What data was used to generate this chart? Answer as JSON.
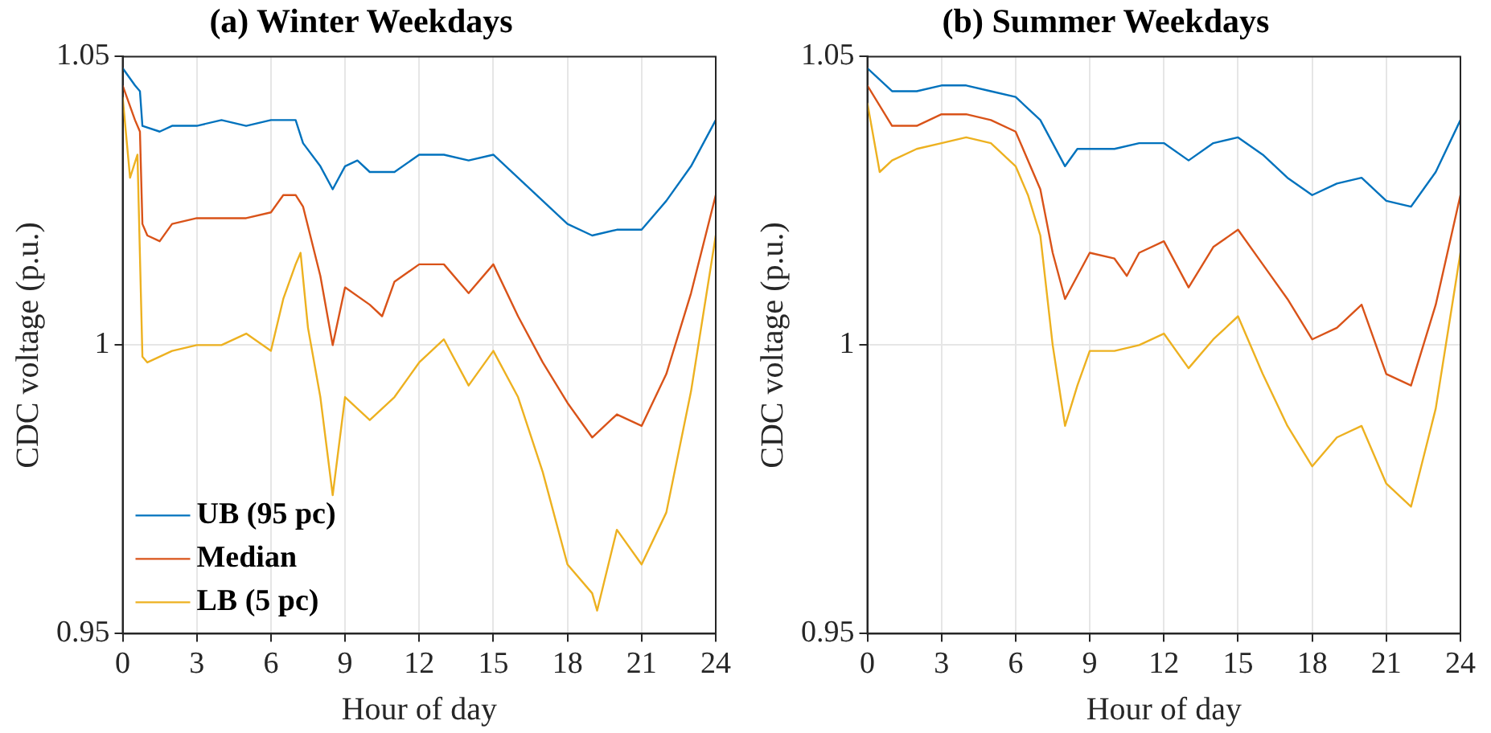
{
  "chart_data": [
    {
      "type": "line",
      "title": "(a) Winter Weekdays",
      "xlabel": "Hour of day",
      "ylabel": "CDC voltage (p.u.)",
      "xlim": [
        0,
        24
      ],
      "xticks": [
        0,
        3,
        6,
        9,
        12,
        15,
        18,
        21,
        24
      ],
      "ylim": [
        0.95,
        1.05
      ],
      "yticks": [
        0.95,
        1,
        1.05
      ],
      "grid": true,
      "legend": "bottom left",
      "marker": "none",
      "line_style": "solid",
      "series": [
        {
          "name": "UB (95 pc)",
          "color": "#0072bd",
          "x": [
            0,
            0.5,
            0.7,
            0.8,
            1.5,
            2,
            3,
            4,
            5,
            6,
            7,
            7.3,
            8,
            8.5,
            9,
            9.5,
            10,
            11,
            12,
            13,
            14,
            15,
            16,
            17,
            18,
            19,
            20,
            21,
            22,
            23,
            24
          ],
          "values": [
            1.048,
            1.045,
            1.044,
            1.038,
            1.037,
            1.038,
            1.038,
            1.039,
            1.038,
            1.039,
            1.039,
            1.035,
            1.031,
            1.027,
            1.031,
            1.032,
            1.03,
            1.03,
            1.033,
            1.033,
            1.032,
            1.033,
            1.029,
            1.025,
            1.021,
            1.019,
            1.02,
            1.02,
            1.025,
            1.031,
            1.039
          ]
        },
        {
          "name": "Median",
          "color": "#d95319",
          "x": [
            0,
            0.5,
            0.7,
            0.8,
            1,
            1.5,
            2,
            3,
            4,
            5,
            6,
            6.5,
            7,
            7.3,
            8,
            8.5,
            9,
            10,
            10.5,
            11,
            12,
            13,
            14,
            15,
            16,
            17,
            18,
            19,
            20,
            21,
            22,
            23,
            24
          ],
          "values": [
            1.045,
            1.039,
            1.037,
            1.021,
            1.019,
            1.018,
            1.021,
            1.022,
            1.022,
            1.022,
            1.023,
            1.026,
            1.026,
            1.024,
            1.012,
            1,
            1.01,
            1.007,
            1.005,
            1.011,
            1.014,
            1.014,
            1.009,
            1.014,
            1.005,
            0.997,
            0.99,
            0.984,
            0.988,
            0.986,
            0.995,
            1.009,
            1.026
          ]
        },
        {
          "name": "LB (5 pc)",
          "color": "#edb120",
          "x": [
            0,
            0.3,
            0.6,
            0.8,
            1,
            2,
            3,
            4,
            5,
            6,
            6.5,
            7,
            7.2,
            7.5,
            8,
            8.5,
            9,
            10,
            11,
            12,
            13,
            14,
            15,
            16,
            17,
            18,
            19,
            19.2,
            20,
            21,
            22,
            23,
            24
          ],
          "values": [
            1.043,
            1.029,
            1.033,
            0.998,
            0.997,
            0.999,
            1,
            1,
            1.002,
            0.999,
            1.008,
            1.014,
            1.016,
            1.003,
            0.991,
            0.974,
            0.991,
            0.987,
            0.991,
            0.997,
            1.001,
            0.993,
            0.999,
            0.991,
            0.978,
            0.962,
            0.957,
            0.954,
            0.968,
            0.962,
            0.971,
            0.992,
            1.019
          ]
        }
      ]
    },
    {
      "type": "line",
      "title": "(b) Summer Weekdays",
      "xlabel": "Hour of day",
      "ylabel": "CDC voltage (p.u.)",
      "xlim": [
        0,
        24
      ],
      "xticks": [
        0,
        3,
        6,
        9,
        12,
        15,
        18,
        21,
        24
      ],
      "ylim": [
        0.95,
        1.05
      ],
      "yticks": [
        0.95,
        1,
        1.05
      ],
      "grid": true,
      "marker": "none",
      "line_style": "solid",
      "series": [
        {
          "color": "#0072bd",
          "x": [
            0,
            1,
            2,
            3,
            4,
            5,
            6,
            7,
            8,
            8.5,
            9,
            10,
            11,
            12,
            13,
            14,
            15,
            16,
            17,
            18,
            19,
            20,
            21,
            22,
            23,
            24
          ],
          "values": [
            1.048,
            1.044,
            1.044,
            1.045,
            1.045,
            1.044,
            1.043,
            1.039,
            1.031,
            1.034,
            1.034,
            1.034,
            1.035,
            1.035,
            1.032,
            1.035,
            1.036,
            1.033,
            1.029,
            1.026,
            1.028,
            1.029,
            1.025,
            1.024,
            1.03,
            1.039
          ]
        },
        {
          "color": "#d95319",
          "x": [
            0,
            1,
            2,
            3,
            4,
            5,
            6,
            7,
            7.5,
            8,
            8.5,
            9,
            10,
            10.5,
            11,
            12,
            13,
            14,
            15,
            16,
            17,
            18,
            19,
            20,
            21,
            22,
            23,
            24
          ],
          "values": [
            1.045,
            1.038,
            1.038,
            1.04,
            1.04,
            1.039,
            1.037,
            1.027,
            1.016,
            1.008,
            1.012,
            1.016,
            1.015,
            1.012,
            1.016,
            1.018,
            1.01,
            1.017,
            1.02,
            1.014,
            1.008,
            1.001,
            1.003,
            1.007,
            0.995,
            0.993,
            1.007,
            1.026
          ]
        },
        {
          "color": "#edb120",
          "x": [
            0,
            0.5,
            1,
            2,
            3,
            4,
            5,
            6,
            6.5,
            7,
            7.5,
            8,
            8.5,
            9,
            10,
            11,
            12,
            13,
            14,
            15,
            16,
            17,
            18,
            19,
            20,
            21,
            22,
            23,
            24
          ],
          "values": [
            1.042,
            1.03,
            1.032,
            1.034,
            1.035,
            1.036,
            1.035,
            1.031,
            1.026,
            1.019,
            1,
            0.986,
            0.993,
            0.999,
            0.999,
            1,
            1.002,
            0.996,
            1.001,
            1.005,
            0.995,
            0.986,
            0.979,
            0.984,
            0.986,
            0.976,
            0.972,
            0.989,
            1.016
          ]
        }
      ]
    }
  ]
}
